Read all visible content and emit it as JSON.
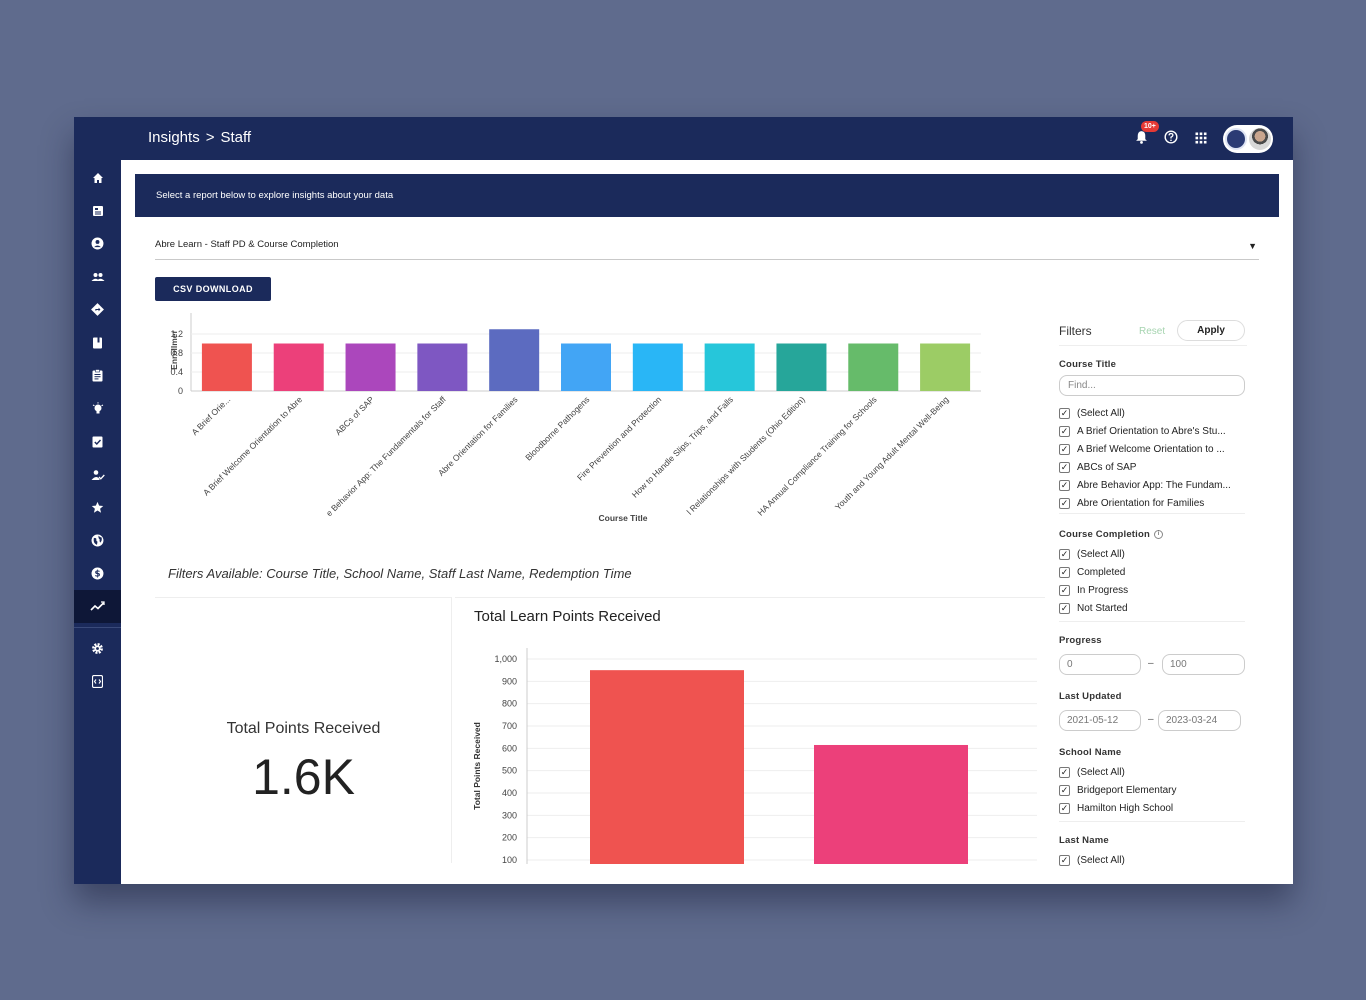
{
  "header": {
    "breadcrumb": [
      "Insights",
      "Staff"
    ],
    "breadcrumb_sep": ">",
    "notification_badge": "10+"
  },
  "sidebar": {
    "items": [
      {
        "icon": "home-icon"
      },
      {
        "icon": "dashboard-icon"
      },
      {
        "icon": "account-circle-icon"
      },
      {
        "icon": "people-icon"
      },
      {
        "icon": "directions-icon"
      },
      {
        "icon": "book-icon"
      },
      {
        "icon": "assignment-icon"
      },
      {
        "icon": "lightbulb-icon"
      },
      {
        "icon": "assignment-check-icon"
      },
      {
        "icon": "person-check-icon"
      },
      {
        "icon": "star-icon"
      },
      {
        "icon": "globe-icon"
      },
      {
        "icon": "dollar-icon"
      },
      {
        "icon": "insights-icon",
        "active": true
      },
      {
        "icon": "settings-icon"
      },
      {
        "icon": "code-icon"
      }
    ]
  },
  "banner": {
    "text": "Select a report below to explore insights about your data"
  },
  "report": {
    "selected": "Abre Learn - Staff PD & Course Completion"
  },
  "csv_button": "CSV DOWNLOAD",
  "filters_note": "Filters Available: Course Title, School Name, Staff Last Name, Redemption Time",
  "total_card": {
    "label": "Total Points Received",
    "value": "1.6K"
  },
  "points_chart": {
    "title": "Total Learn Points Received"
  },
  "chart_data": [
    {
      "type": "bar",
      "xlabel": "Course Title",
      "ylabel": "Enrollmer",
      "ylim": [
        0,
        1.2
      ],
      "yticks": [
        "0",
        "0.4",
        "0.8",
        "1.2"
      ],
      "grid": true,
      "categories": [
        "A Brief Orie...",
        "A Brief Welcome Orientation to Abre",
        "ABCs of SAP",
        "e Behavior App: The Fundamentals for Staff",
        "Abre Orientation for Families",
        "Bloodborne Pathogens",
        "Fire Prevention and Protection",
        "How to Handle Slips, Trips, and Falls",
        "l Relationships with Students (Ohio Edition)",
        "HA Annual Compliance Training for Schools",
        "Youth and Young Adult Mental Well-Being"
      ],
      "values": [
        1,
        1,
        1,
        1,
        1.3,
        1,
        1,
        1,
        1,
        1,
        1
      ],
      "colors": [
        "#ef5350",
        "#ec407a",
        "#ab47bc",
        "#7e57c2",
        "#5c6bc0",
        "#42a5f5",
        "#29b6f6",
        "#26c6da",
        "#26a69a",
        "#66bb6a",
        "#9ccc65"
      ]
    },
    {
      "type": "bar",
      "ylabel": "Total Points Received",
      "ylim": [
        100,
        1000
      ],
      "yticks": [
        "100",
        "200",
        "300",
        "400",
        "500",
        "600",
        "700",
        "800",
        "900",
        "1,000"
      ],
      "grid": true,
      "values": [
        950,
        615
      ],
      "colors": [
        "#ef5350",
        "#ec407a"
      ]
    }
  ],
  "filters": {
    "title": "Filters",
    "reset": "Reset",
    "apply": "Apply",
    "course_title": {
      "label": "Course Title",
      "placeholder": "Find...",
      "options": [
        "(Select All)",
        "A Brief Orientation to Abre's Stu...",
        "A Brief Welcome Orientation to ...",
        "ABCs of SAP",
        "Abre Behavior App: The Fundam...",
        "Abre Orientation for Families"
      ]
    },
    "course_completion": {
      "label": "Course Completion",
      "options": [
        "(Select All)",
        "Completed",
        "In Progress",
        "Not Started"
      ]
    },
    "progress": {
      "label": "Progress",
      "min": "0",
      "max": "100"
    },
    "last_updated": {
      "label": "Last Updated",
      "from": "2021-05-12",
      "to": "2023-03-24"
    },
    "school_name": {
      "label": "School Name",
      "options": [
        "(Select All)",
        "Bridgeport Elementary",
        "Hamilton High School"
      ]
    },
    "last_name": {
      "label": "Last Name",
      "options": [
        "(Select All)"
      ]
    },
    "range_sep": "–",
    "check_mark": "✓"
  }
}
